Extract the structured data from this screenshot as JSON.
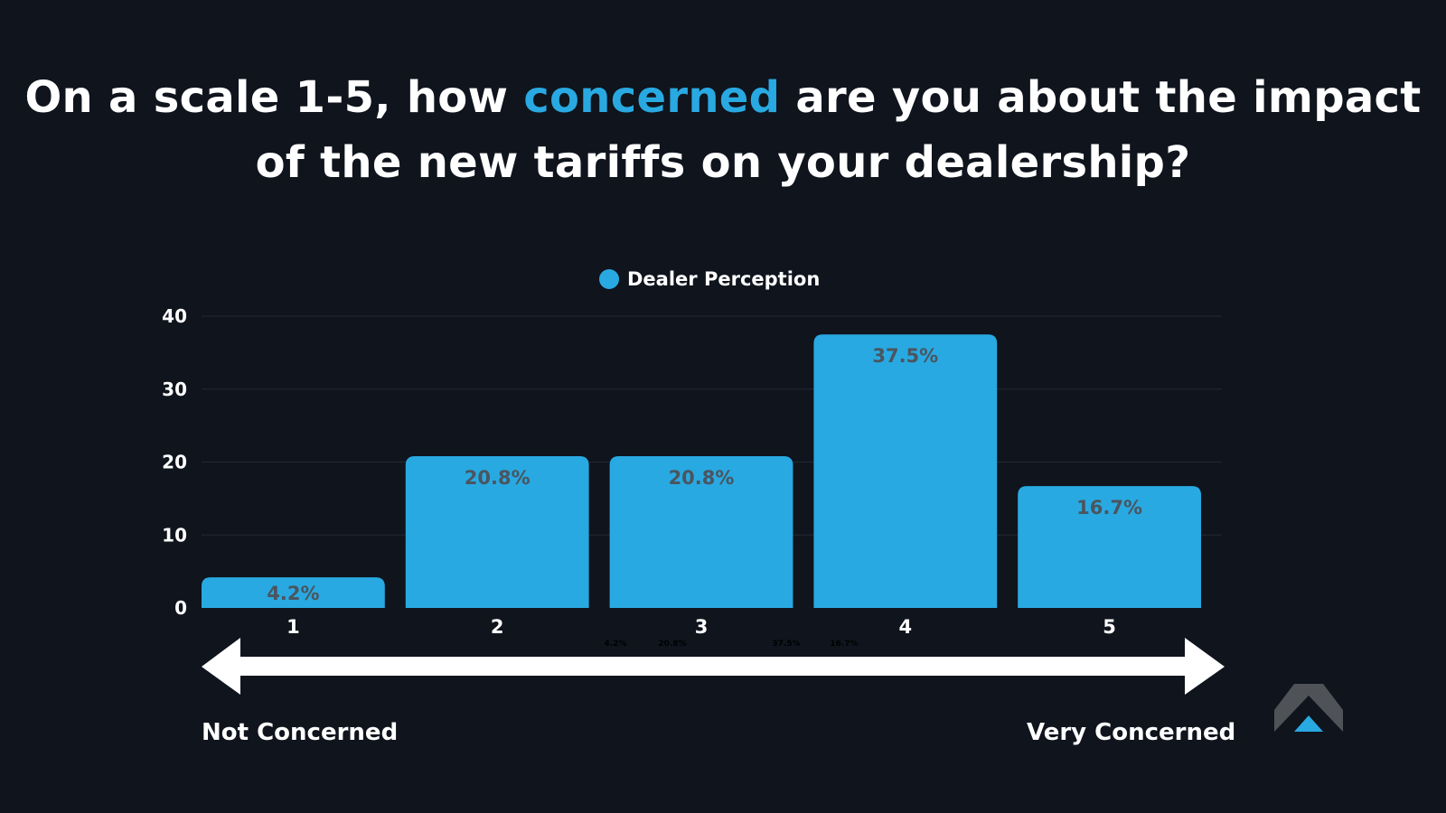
{
  "title": {
    "before": "On a scale 1-5, how ",
    "highlight": "concerned",
    "after": " are you about the impact of the new tariffs on your dealership?"
  },
  "scale": {
    "left_label": "Not Concerned",
    "right_label": "Very Concerned"
  },
  "colors": {
    "background": "#0f141d",
    "accent": "#29a9e1",
    "bar_label": "#4a5560",
    "logo_gray": "#4f5357"
  },
  "logo": {
    "icon": "mountain-logo-icon"
  },
  "chart_data": {
    "type": "bar",
    "title": "",
    "xlabel": "",
    "ylabel": "",
    "categories": [
      "1",
      "2",
      "3",
      "4",
      "5"
    ],
    "series": [
      {
        "name": "Dealer Perception",
        "values": [
          4.2,
          20.8,
          20.8,
          37.5,
          16.7
        ],
        "labels": [
          "4.2%",
          "20.8%",
          "20.8%",
          "37.5%",
          "16.7%"
        ]
      }
    ],
    "yticks": [
      "0",
      "10",
      "20",
      "30",
      "40"
    ],
    "ylim": [
      0,
      40
    ],
    "grid": true,
    "legend": "top-center",
    "ghost_labels": [
      "4.2%",
      "20.8%",
      "37.5%",
      "16.7%"
    ]
  }
}
